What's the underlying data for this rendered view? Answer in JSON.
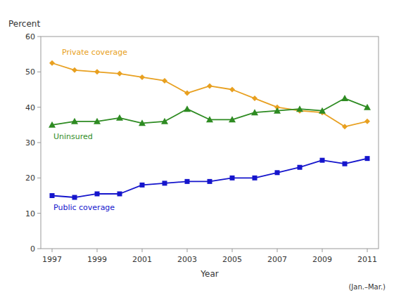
{
  "chart_data": {
    "type": "line",
    "x": [
      1997,
      1998,
      1999,
      2000,
      2001,
      2002,
      2003,
      2004,
      2005,
      2006,
      2007,
      2008,
      2009,
      2010,
      2011
    ],
    "series": [
      {
        "name": "Private coverage",
        "color": "#E8A020",
        "marker": "diamond",
        "values": [
          52.5,
          50.5,
          50.0,
          49.5,
          48.5,
          47.5,
          44.0,
          46.0,
          45.0,
          42.5,
          40.0,
          39.0,
          38.5,
          34.5,
          36.0
        ]
      },
      {
        "name": "Uninsured",
        "color": "#2E8B22",
        "marker": "triangle",
        "values": [
          35.0,
          36.0,
          36.0,
          37.0,
          35.5,
          36.0,
          39.5,
          36.5,
          36.5,
          38.5,
          39.0,
          39.5,
          39.0,
          42.5,
          40.0
        ]
      },
      {
        "name": "Public coverage",
        "color": "#1515CC",
        "marker": "square",
        "values": [
          15.0,
          14.5,
          15.5,
          15.5,
          18.0,
          18.5,
          19.0,
          19.0,
          20.0,
          20.0,
          21.5,
          23.0,
          25.0,
          24.0,
          25.5
        ]
      }
    ],
    "xlabel": "Year",
    "ylabel": "Percent",
    "xlim": [
      1996.5,
      2011.5
    ],
    "ylim": [
      0,
      60
    ],
    "xticks": [
      1997,
      1999,
      2001,
      2003,
      2005,
      2007,
      2009,
      2011
    ],
    "yticks": [
      0,
      10,
      20,
      30,
      40,
      50,
      60
    ],
    "grid": false,
    "annotations": [
      {
        "text": "(Jan.–Mar.)"
      }
    ]
  }
}
